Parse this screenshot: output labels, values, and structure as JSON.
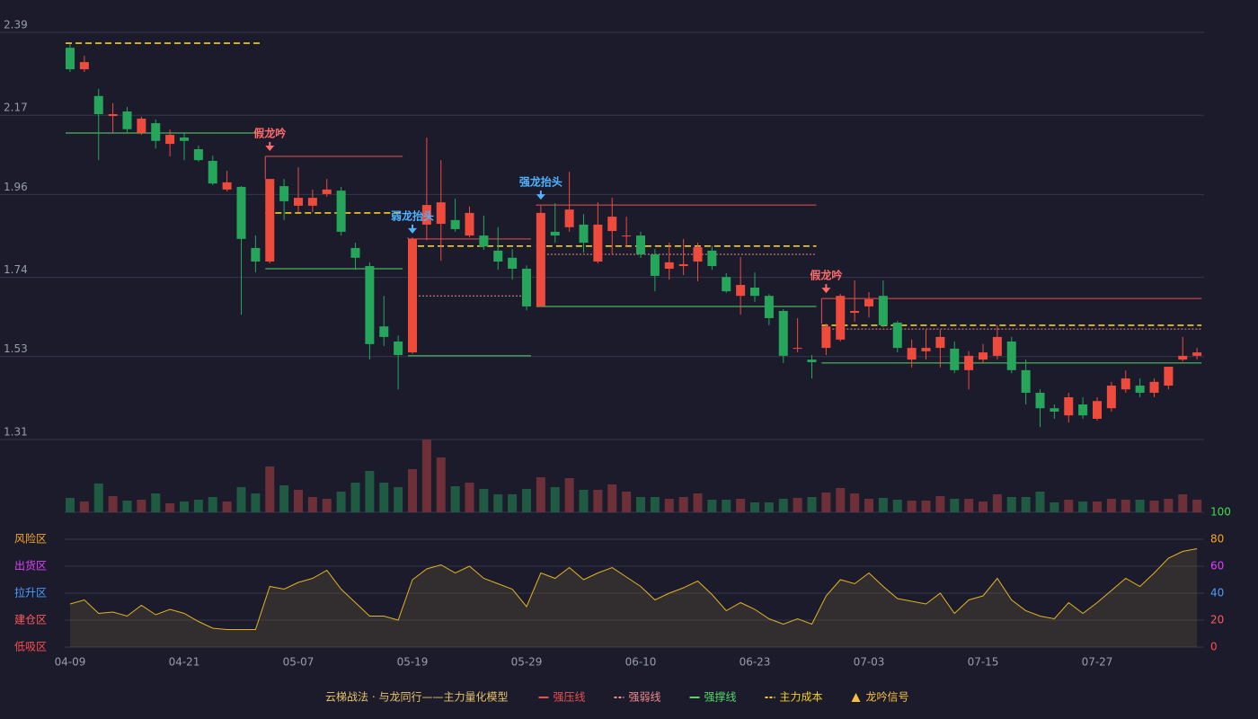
{
  "chart_data": {
    "type": "candlestick",
    "categories": [
      "04-09",
      null,
      null,
      null,
      null,
      null,
      null,
      null,
      "04-21",
      null,
      null,
      null,
      null,
      null,
      null,
      null,
      "05-07",
      null,
      null,
      null,
      null,
      null,
      null,
      null,
      "05-19",
      null,
      null,
      null,
      null,
      null,
      null,
      null,
      "05-29",
      null,
      null,
      null,
      null,
      null,
      null,
      null,
      "06-10",
      null,
      null,
      null,
      null,
      null,
      null,
      null,
      "06-23",
      null,
      null,
      null,
      null,
      null,
      null,
      null,
      "07-03",
      null,
      null,
      null,
      null,
      null,
      null,
      null,
      "07-15",
      null,
      null,
      null,
      null,
      null,
      null,
      null,
      "07-27",
      null,
      null,
      null,
      null,
      null,
      null,
      null
    ],
    "open": [
      2.349,
      2.292,
      2.221,
      2.168,
      2.18,
      2.123,
      2.149,
      2.094,
      2.111,
      2.08,
      2.049,
      1.973,
      1.98,
      1.818,
      1.782,
      1.982,
      1.93,
      1.93,
      1.961,
      1.97,
      1.818,
      1.77,
      1.61,
      1.57,
      1.541,
      1.88,
      1.882,
      1.892,
      1.851,
      1.851,
      1.811,
      1.792,
      1.763,
      1.663,
      1.861,
      1.873,
      1.88,
      1.782,
      1.863,
      1.849,
      1.851,
      1.801,
      1.763,
      1.77,
      1.782,
      1.811,
      1.741,
      1.691,
      1.713,
      1.691,
      1.651,
      1.551,
      1.522,
      1.553,
      1.575,
      1.646,
      1.663,
      1.691,
      1.62,
      1.522,
      1.544,
      1.553,
      1.551,
      1.494,
      1.522,
      1.532,
      1.57,
      1.494,
      1.434,
      1.393,
      1.374,
      1.403,
      1.365,
      1.393,
      1.443,
      1.453,
      1.434,
      1.453,
      1.522,
      1.532
    ],
    "high": [
      2.359,
      2.328,
      2.24,
      2.202,
      2.192,
      2.166,
      2.159,
      2.132,
      2.123,
      2.089,
      2.063,
      2.023,
      1.982,
      1.851,
      2.001,
      2.001,
      2.032,
      1.973,
      2.001,
      1.98,
      1.832,
      1.78,
      1.691,
      1.586,
      1.846,
      2.111,
      2.051,
      1.949,
      1.928,
      1.904,
      1.873,
      1.815,
      1.772,
      1.93,
      1.937,
      2.02,
      1.908,
      1.939,
      1.951,
      1.901,
      1.861,
      1.815,
      1.832,
      1.842,
      1.832,
      1.823,
      1.751,
      1.794,
      1.753,
      1.696,
      1.656,
      1.632,
      1.534,
      1.617,
      1.696,
      1.732,
      1.701,
      1.732,
      1.625,
      1.575,
      1.601,
      1.601,
      1.57,
      1.544,
      1.563,
      1.613,
      1.582,
      1.522,
      1.443,
      1.403,
      1.434,
      1.422,
      1.422,
      1.463,
      1.493,
      1.472,
      1.472,
      1.503,
      1.582,
      1.553
    ],
    "low": [
      2.285,
      2.285,
      2.051,
      2.123,
      2.123,
      2.118,
      2.082,
      2.061,
      2.051,
      2.047,
      1.985,
      1.968,
      1.641,
      1.753,
      1.777,
      1.892,
      1.913,
      1.913,
      1.954,
      1.851,
      1.76,
      1.522,
      1.558,
      1.443,
      1.537,
      1.839,
      1.784,
      1.861,
      1.846,
      1.813,
      1.76,
      1.734,
      1.653,
      1.663,
      1.832,
      1.861,
      1.806,
      1.777,
      1.801,
      1.82,
      1.792,
      1.703,
      1.734,
      1.746,
      1.73,
      1.76,
      1.699,
      1.641,
      1.675,
      1.613,
      1.513,
      1.541,
      1.472,
      1.534,
      1.57,
      1.622,
      1.634,
      1.608,
      1.541,
      1.501,
      1.522,
      1.501,
      1.486,
      1.443,
      1.513,
      1.522,
      1.486,
      1.403,
      1.343,
      1.365,
      1.355,
      1.365,
      1.36,
      1.384,
      1.434,
      1.422,
      1.422,
      1.443,
      1.517,
      1.522
    ],
    "close": [
      2.292,
      2.311,
      2.173,
      2.173,
      2.133,
      2.161,
      2.102,
      2.118,
      2.102,
      2.051,
      1.989,
      1.992,
      1.842,
      1.782,
      2.001,
      1.942,
      1.951,
      1.951,
      1.973,
      1.861,
      1.792,
      1.563,
      1.582,
      1.534,
      1.842,
      1.932,
      1.939,
      1.868,
      1.911,
      1.822,
      1.782,
      1.763,
      1.663,
      1.911,
      1.851,
      1.92,
      1.832,
      1.88,
      1.901,
      1.851,
      1.801,
      1.744,
      1.78,
      1.775,
      1.82,
      1.77,
      1.703,
      1.72,
      1.691,
      1.632,
      1.532,
      1.553,
      1.515,
      1.61,
      1.691,
      1.651,
      1.682,
      1.613,
      1.553,
      1.553,
      1.553,
      1.582,
      1.494,
      1.532,
      1.541,
      1.582,
      1.494,
      1.434,
      1.393,
      1.384,
      1.422,
      1.374,
      1.412,
      1.453,
      1.472,
      1.434,
      1.463,
      1.503,
      1.532,
      1.541
    ],
    "volume": [
      16,
      12,
      32,
      18,
      13,
      14,
      21,
      10,
      12,
      14,
      17,
      12,
      28,
      21,
      51,
      30,
      25,
      17,
      15,
      23,
      33,
      46,
      33,
      28,
      48,
      81,
      61,
      29,
      33,
      26,
      20,
      20,
      26,
      39,
      28,
      38,
      25,
      25,
      31,
      23,
      17,
      17,
      15,
      17,
      21,
      14,
      14,
      15,
      11,
      11,
      15,
      16,
      17,
      22,
      27,
      21,
      15,
      16,
      14,
      13,
      13,
      18,
      15,
      15,
      12,
      20,
      17,
      17,
      23,
      11,
      14,
      12,
      12,
      15,
      14,
      14,
      13,
      15,
      20,
      14
    ],
    "oscillator": [
      32,
      35,
      25,
      26,
      23,
      31,
      24,
      28,
      25,
      19,
      14,
      13,
      13,
      13,
      45,
      43,
      48,
      51,
      57,
      43,
      33,
      23,
      23,
      20,
      50,
      58,
      61,
      55,
      60,
      51,
      47,
      43,
      30,
      55,
      51,
      59,
      50,
      55,
      59,
      52,
      45,
      35,
      40,
      44,
      49,
      39,
      27,
      33,
      28,
      21,
      17,
      21,
      17,
      38,
      50,
      47,
      55,
      45,
      36,
      34,
      32,
      40,
      25,
      35,
      38,
      51,
      35,
      27,
      23,
      21,
      33,
      25,
      33,
      42,
      51,
      45,
      55,
      66,
      71,
      73
    ],
    "up_color": "#ef4b3c",
    "down_color": "#26a65b",
    "up_volume_color": "#6e3038",
    "down_volume_color": "#1f5a42",
    "oscillator_color": "#e3b324",
    "ylim": [
      1.117,
      2.428
    ],
    "yticks": [
      1.31,
      1.53,
      1.74,
      1.96,
      2.17,
      2.39
    ],
    "y2lim": [
      0,
      100
    ],
    "y2ticks": [
      0,
      20,
      40,
      60,
      80,
      100
    ],
    "y2tick_colors": [
      "#ff4d4d",
      "#ff5a5a",
      "#4a9eff",
      "#e040fb",
      "#f5a623",
      "#3ddc4a"
    ],
    "zones": [
      {
        "label": "风险区",
        "value": 80,
        "color": "#f5a623"
      },
      {
        "label": "出货区",
        "value": 60,
        "color": "#e040fb"
      },
      {
        "label": "拉升区",
        "value": 40,
        "color": "#4a9eff"
      },
      {
        "label": "建仓区",
        "value": 20,
        "color": "#ff5a5a"
      },
      {
        "label": "低吸区",
        "value": 0,
        "color": "#ff4d4d"
      }
    ],
    "grid": true,
    "levels": [
      {
        "style": "cost",
        "value": 2.361,
        "start": 0,
        "end": 13
      },
      {
        "style": "support",
        "value": 2.123,
        "start": 0,
        "end": 13
      },
      {
        "style": "pressure",
        "value": 2.061,
        "start": 14,
        "end": 23
      },
      {
        "style": "cost",
        "value": 1.911,
        "start": 14,
        "end": 23
      },
      {
        "style": "support",
        "value": 1.763,
        "start": 14,
        "end": 23
      },
      {
        "style": "pressure",
        "value": 1.842,
        "start": 24,
        "end": 32
      },
      {
        "style": "cost",
        "value": 1.823,
        "start": 24,
        "end": 32
      },
      {
        "style": "weak",
        "value": 1.691,
        "start": 24,
        "end": 32
      },
      {
        "style": "support",
        "value": 1.532,
        "start": 24,
        "end": 32
      },
      {
        "style": "pressure",
        "value": 1.932,
        "start": 33,
        "end": 52
      },
      {
        "style": "cost",
        "value": 1.823,
        "start": 33,
        "end": 52
      },
      {
        "style": "weak",
        "value": 1.801,
        "start": 33,
        "end": 52
      },
      {
        "style": "support",
        "value": 1.663,
        "start": 33,
        "end": 52
      },
      {
        "style": "pressure",
        "value": 1.684,
        "start": 53,
        "end": 79
      },
      {
        "style": "cost",
        "value": 1.613,
        "start": 53,
        "end": 79
      },
      {
        "style": "weak",
        "value": 1.603,
        "start": 53,
        "end": 79
      },
      {
        "style": "support",
        "value": 1.513,
        "start": 53,
        "end": 79
      }
    ],
    "signals": [
      {
        "index": 14,
        "label": "假龙吟",
        "color": "#ff6b6b"
      },
      {
        "index": 24,
        "label": "弱龙抬头",
        "color": "#4fb3ff"
      },
      {
        "index": 33,
        "label": "强龙抬头",
        "color": "#4fb3ff"
      },
      {
        "index": 53,
        "label": "假龙吟",
        "color": "#ff6b6b"
      }
    ],
    "legend_title": "云梯战法 · 与龙同行——主力量化模型",
    "legend": [
      {
        "style": "pressure",
        "label": "强压线",
        "color": "#e85050"
      },
      {
        "style": "weak",
        "label": "强弱线",
        "color": "#f08c8c"
      },
      {
        "style": "support",
        "label": "强撑线",
        "color": "#55d86a"
      },
      {
        "style": "cost",
        "label": "主力成本",
        "color": "#f5d020"
      },
      {
        "style": "signal",
        "label": "龙吟信号",
        "color": "#f5c040"
      }
    ]
  }
}
